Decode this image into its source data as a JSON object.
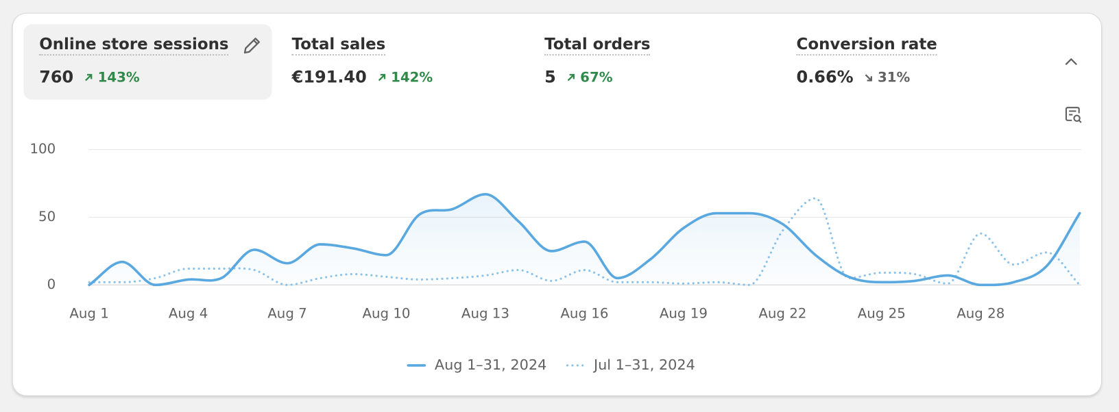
{
  "metrics": [
    {
      "label": "Online store sessions",
      "value": "760",
      "change": "143%",
      "direction": "up"
    },
    {
      "label": "Total sales",
      "value": "€191.40",
      "change": "142%",
      "direction": "up"
    },
    {
      "label": "Total orders",
      "value": "5",
      "change": "67%",
      "direction": "up"
    },
    {
      "label": "Conversion rate",
      "value": "0.66%",
      "change": "31%",
      "direction": "down"
    }
  ],
  "chart_data": {
    "type": "line",
    "categories": [
      "Aug 1",
      null,
      null,
      "Aug 4",
      null,
      null,
      "Aug 7",
      null,
      null,
      "Aug 10",
      null,
      null,
      "Aug 13",
      null,
      null,
      "Aug 16",
      null,
      null,
      "Aug 19",
      null,
      null,
      "Aug 22",
      null,
      null,
      "Aug 25",
      null,
      null,
      "Aug 28",
      null,
      null,
      null
    ],
    "series": [
      {
        "name": "Aug 1–31, 2024",
        "color": "#5aa8e0",
        "line_style": "solid",
        "values": [
          0,
          17,
          0,
          4,
          5,
          26,
          16,
          30,
          27,
          22,
          52,
          56,
          67,
          47,
          25,
          32,
          5,
          19,
          42,
          53,
          53,
          45,
          22,
          6,
          2,
          3,
          7,
          0,
          2,
          14,
          53
        ]
      },
      {
        "name": "Jul 1–31, 2024",
        "color": "#8cc3ea",
        "line_style": "dotted",
        "values": [
          2,
          2,
          5,
          12,
          12,
          11,
          0,
          5,
          8,
          6,
          4,
          5,
          7,
          11,
          3,
          11,
          2,
          2,
          1,
          2,
          0,
          40,
          64,
          5,
          9,
          8,
          1,
          38,
          15,
          24,
          0
        ]
      }
    ],
    "ylim": [
      0,
      100
    ],
    "yticks": [
      0,
      50,
      100
    ],
    "grid": true
  }
}
